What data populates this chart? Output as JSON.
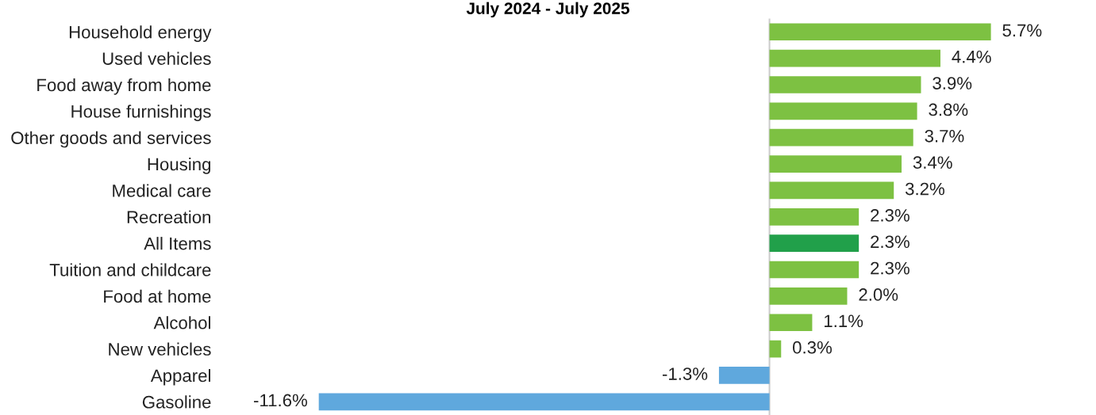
{
  "chart_data": {
    "type": "bar",
    "orientation": "horizontal",
    "title": "July 2024 - July 2025",
    "categories": [
      "Household energy",
      "Used vehicles",
      "Food away from home",
      "House furnishings",
      "Other goods and services",
      "Housing",
      "Medical care",
      "Recreation",
      "All Items",
      "Tuition and childcare",
      "Food at home",
      "Alcohol",
      "New vehicles",
      "Apparel",
      "Gasoline"
    ],
    "values": [
      5.7,
      4.4,
      3.9,
      3.8,
      3.7,
      3.4,
      3.2,
      2.3,
      2.3,
      2.3,
      2.0,
      1.1,
      0.3,
      -1.3,
      -11.6
    ],
    "colors": [
      "#7dc142",
      "#7dc142",
      "#7dc142",
      "#7dc142",
      "#7dc142",
      "#7dc142",
      "#7dc142",
      "#7dc142",
      "#21a04a",
      "#7dc142",
      "#7dc142",
      "#7dc142",
      "#7dc142",
      "#5fa8dd",
      "#5fa8dd"
    ],
    "value_labels": [
      "5.7%",
      "4.4%",
      "3.9%",
      "3.8%",
      "3.7%",
      "3.4%",
      "3.2%",
      "2.3%",
      "2.3%",
      "2.3%",
      "2.0%",
      "1.1%",
      "0.3%",
      "-1.3%",
      "-11.6%"
    ],
    "ref_lines": [
      {
        "axis": "x",
        "value": 0,
        "color": "#cccccc"
      }
    ],
    "grid": false
  }
}
